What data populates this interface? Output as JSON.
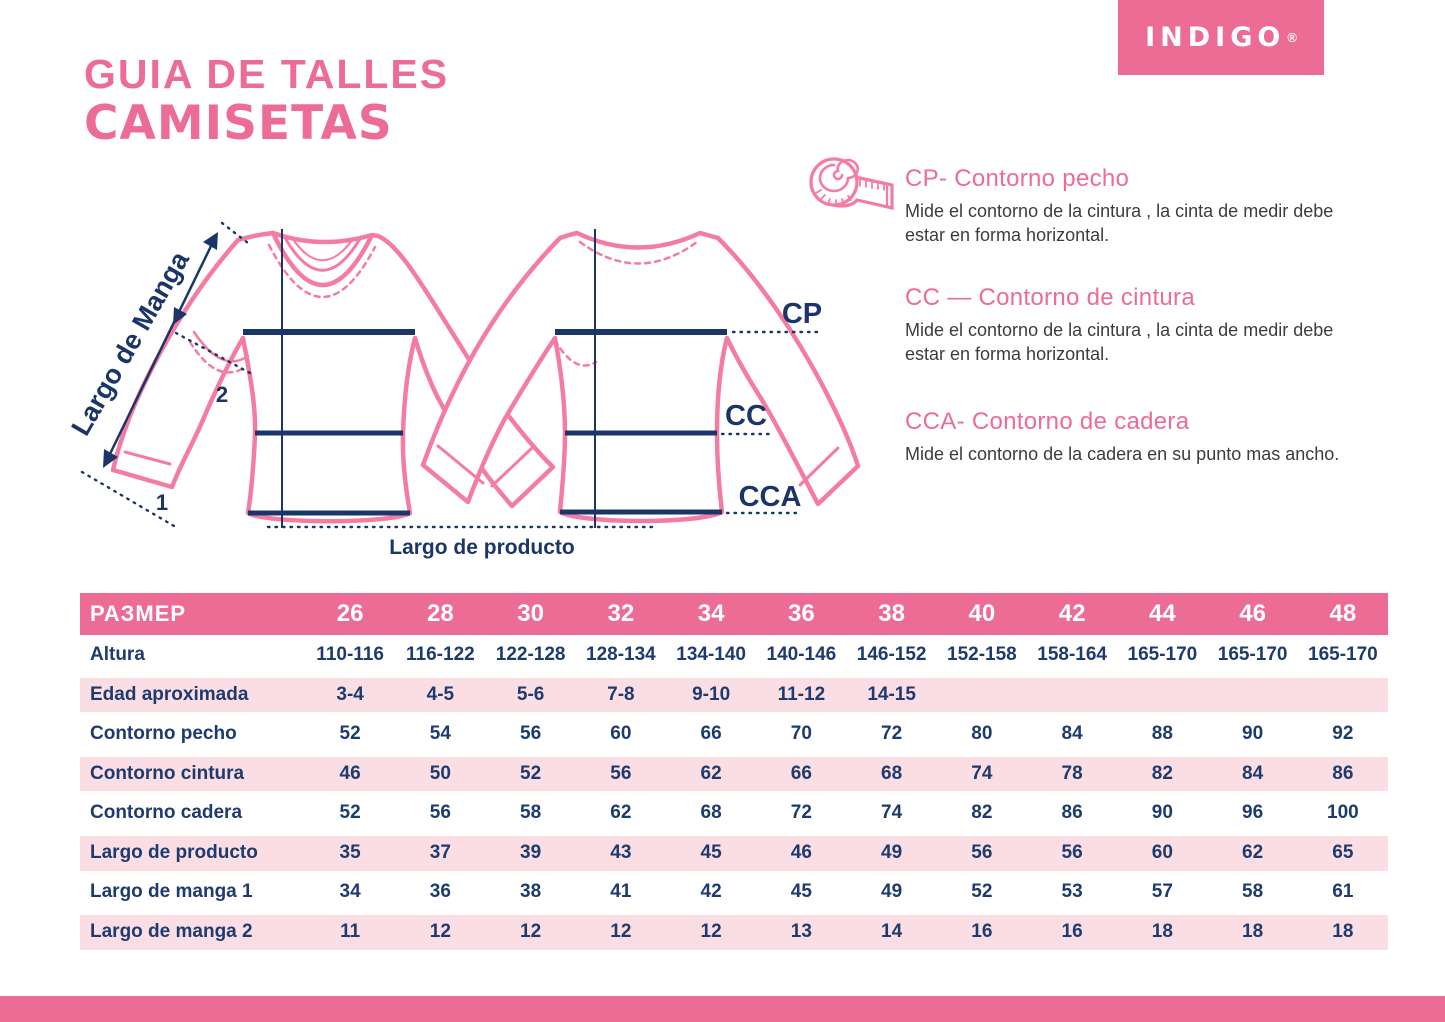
{
  "colors": {
    "accent": "#EC6C95",
    "shirt_pink": "#F47CA3",
    "navy": "#1E3B6F",
    "line_navy": "#1C3569",
    "row_pink": "#FBDDE4",
    "body_text": "#3C3C3C"
  },
  "header": {
    "title_line1": "GUIA DE TALLES",
    "title_line2": "CAMISETAS",
    "brand_name": "INDIGO",
    "brand_mark": "®"
  },
  "diagram": {
    "sleeve_length_label": "Largo de Manga",
    "product_length_label": "Largo de producto",
    "marker_1": "1",
    "marker_2": "2",
    "chest_abbr": "CP",
    "waist_abbr": "CC",
    "hip_abbr": "CCA"
  },
  "legend": {
    "cp": {
      "heading": "CP- Contorno pecho",
      "body": "Mide el contorno de la cintura , la cinta de medir debe estar en forma horizontal."
    },
    "cc": {
      "heading": "CC — Contorno de cintura",
      "body": "Mide el contorno de la cintura , la cinta de medir debe estar en forma horizontal."
    },
    "cca": {
      "heading": "CCA- Contorno de cadera",
      "body": "Mide el contorno de la cadera en su punto mas ancho."
    }
  },
  "table": {
    "header_label": "РАЗМЕР",
    "sizes": [
      "26",
      "28",
      "30",
      "32",
      "34",
      "36",
      "38",
      "40",
      "42",
      "44",
      "46",
      "48"
    ],
    "rows": [
      {
        "label": "Altura",
        "values": [
          "110-116",
          "116-122",
          "122-128",
          "128-134",
          "134-140",
          "140-146",
          "146-152",
          "152-158",
          "158-164",
          "165-170",
          "165-170",
          "165-170"
        ]
      },
      {
        "label": "Edad aproximada",
        "values": [
          "3-4",
          "4-5",
          "5-6",
          "7-8",
          "9-10",
          "11-12",
          "14-15",
          "",
          "",
          "",
          "",
          ""
        ]
      },
      {
        "label": "Contorno pecho",
        "values": [
          "52",
          "54",
          "56",
          "60",
          "66",
          "70",
          "72",
          "80",
          "84",
          "88",
          "90",
          "92"
        ]
      },
      {
        "label": "Contorno cintura",
        "values": [
          "46",
          "50",
          "52",
          "56",
          "62",
          "66",
          "68",
          "74",
          "78",
          "82",
          "84",
          "86"
        ]
      },
      {
        "label": "Contorno cadera",
        "values": [
          "52",
          "56",
          "58",
          "62",
          "68",
          "72",
          "74",
          "82",
          "86",
          "90",
          "96",
          "100"
        ]
      },
      {
        "label": "Largo de producto",
        "values": [
          "35",
          "37",
          "39",
          "43",
          "45",
          "46",
          "49",
          "56",
          "56",
          "60",
          "62",
          "65"
        ]
      },
      {
        "label": "Largo de manga 1",
        "values": [
          "34",
          "36",
          "38",
          "41",
          "42",
          "45",
          "49",
          "52",
          "53",
          "57",
          "58",
          "61"
        ]
      },
      {
        "label": "Largo de manga 2",
        "values": [
          "11",
          "12",
          "12",
          "12",
          "12",
          "13",
          "14",
          "16",
          "16",
          "18",
          "18",
          "18"
        ]
      }
    ]
  }
}
